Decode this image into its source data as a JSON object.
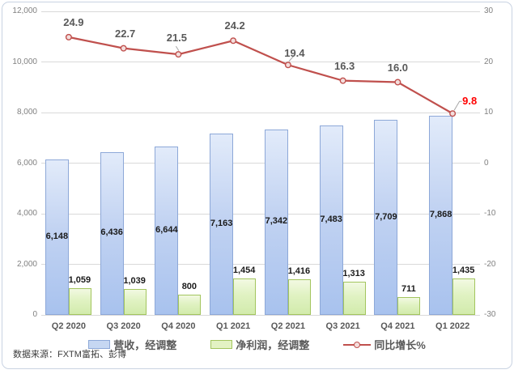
{
  "frame": {
    "background": "#ffffff",
    "border_color": "#c9d3e2"
  },
  "source_note": "数据来源：FXTM富拓、彭博",
  "chart_data": {
    "type": "combo",
    "categories": [
      "Q2 2020",
      "Q3 2020",
      "Q4 2020",
      "Q1 2021",
      "Q2 2021",
      "Q3 2021",
      "Q4 2021",
      "Q1 2022"
    ],
    "series": [
      {
        "name": "营收，经调整",
        "type": "bar",
        "axis": "left",
        "values": [
          6148,
          6436,
          6644,
          7163,
          7342,
          7483,
          7709,
          7868
        ],
        "labels": [
          "6,148",
          "6,436",
          "6,644",
          "7,163",
          "7,342",
          "7,483",
          "7,709",
          "7,868"
        ],
        "fill_top": "#e2ebfa",
        "fill_bottom": "#a8c2ee",
        "border_color": "#8da8d8"
      },
      {
        "name": "净利润，经调整",
        "type": "bar",
        "axis": "left",
        "values": [
          1059,
          1039,
          800,
          1454,
          1416,
          1313,
          711,
          1435
        ],
        "labels": [
          "1,059",
          "1,039",
          "800",
          "1,454",
          "1,416",
          "1,313",
          "711",
          "1,435"
        ],
        "fill_top": "#f2f9e2",
        "fill_bottom": "#d2ebac",
        "border_color": "#a3c55e"
      },
      {
        "name": "同比增长%",
        "type": "line",
        "axis": "right",
        "values": [
          24.9,
          22.7,
          21.5,
          24.2,
          19.4,
          16.3,
          16.0,
          9.8
        ],
        "labels": [
          "24.9",
          "22.7",
          "21.5",
          "24.2",
          "19.4",
          "16.3",
          "16.0",
          "9.8"
        ],
        "color": "#c0504d",
        "marker_fill": "#f3dedd",
        "last_label_color": "#ff0000"
      }
    ],
    "left_axis": {
      "min": 0,
      "max": 12000,
      "ticks": [
        "12,000",
        "10,000",
        "8,000",
        "6,000",
        "4,000",
        "2,000",
        "0"
      ]
    },
    "right_axis": {
      "min": -30,
      "max": 30,
      "ticks": [
        "30",
        "20",
        "10",
        "0",
        "-10",
        "-20",
        "-30"
      ]
    },
    "gridlines": true,
    "gridline_color": "#d9d9d9",
    "legend_position": "bottom",
    "label_colors": {
      "bar_label": "#1a1a1a",
      "line_label": "#595959",
      "axis_tick": "#808080",
      "category": "#595959"
    }
  }
}
